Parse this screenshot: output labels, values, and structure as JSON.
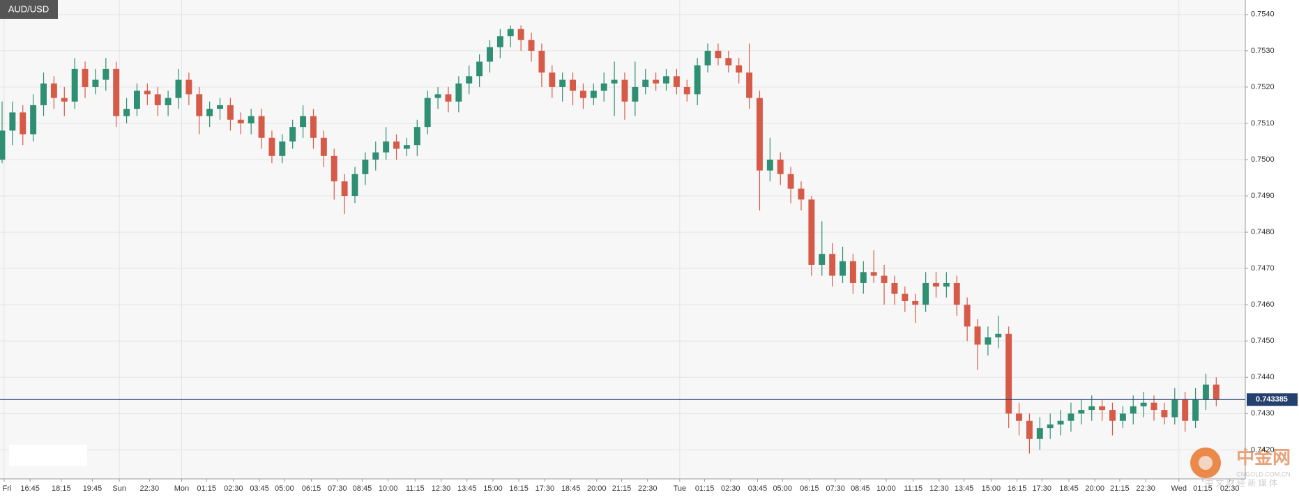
{
  "chart_data": {
    "type": "candlestick",
    "title": "AUD/USD",
    "open": [
      0.75,
      0.7508,
      0.7513,
      0.7507,
      0.7515,
      0.7521,
      0.7517,
      0.7516,
      0.7525,
      0.752,
      0.7522,
      0.7525,
      0.7512,
      0.7514,
      0.7519,
      0.7518,
      0.7515,
      0.7517,
      0.7522,
      0.7518,
      0.7512,
      0.7514,
      0.7515,
      0.7511,
      0.751,
      0.7512,
      0.7506,
      0.7501,
      0.7505,
      0.7509,
      0.7512,
      0.7506,
      0.7501,
      0.7494,
      0.749,
      0.7496,
      0.75,
      0.7502,
      0.7505,
      0.7503,
      0.7504,
      0.7509,
      0.7517,
      0.7518,
      0.7516,
      0.7521,
      0.7523,
      0.7527,
      0.7531,
      0.7534,
      0.7536,
      0.7533,
      0.753,
      0.7524,
      0.752,
      0.7522,
      0.7519,
      0.7517,
      0.7519,
      0.7521,
      0.7522,
      0.7516,
      0.752,
      0.7522,
      0.7521,
      0.7523,
      0.752,
      0.7518,
      0.7526,
      0.753,
      0.7528,
      0.7526,
      0.7524,
      0.7517,
      0.7497,
      0.75,
      0.7496,
      0.7492,
      0.7489,
      0.7471,
      0.7474,
      0.7468,
      0.7472,
      0.7466,
      0.7469,
      0.7468,
      0.7466,
      0.7463,
      0.7461,
      0.746,
      0.7466,
      0.7465,
      0.7466,
      0.746,
      0.7454,
      0.7449,
      0.7451,
      0.7452,
      0.743,
      0.7428,
      0.7423,
      0.7426,
      0.7427,
      0.7428,
      0.743,
      0.7431,
      0.7432,
      0.7431,
      0.7428,
      0.743,
      0.7432,
      0.7433,
      0.7431,
      0.7429,
      0.7434,
      0.7428,
      0.7434,
      0.7438
    ],
    "high": [
      0.7516,
      0.7516,
      0.7515,
      0.7518,
      0.7524,
      0.7523,
      0.752,
      0.7528,
      0.7527,
      0.7525,
      0.7528,
      0.7527,
      0.7517,
      0.7521,
      0.7521,
      0.752,
      0.7519,
      0.7525,
      0.7524,
      0.752,
      0.7516,
      0.7517,
      0.7517,
      0.7513,
      0.7514,
      0.7514,
      0.7508,
      0.7507,
      0.7511,
      0.7515,
      0.7514,
      0.7508,
      0.7503,
      0.7496,
      0.7498,
      0.7502,
      0.7505,
      0.7509,
      0.7507,
      0.7506,
      0.7511,
      0.7519,
      0.752,
      0.752,
      0.7523,
      0.7526,
      0.7529,
      0.7533,
      0.7536,
      0.7537,
      0.7537,
      0.7535,
      0.7532,
      0.7526,
      0.7524,
      0.7524,
      0.7521,
      0.7521,
      0.7524,
      0.7527,
      0.7524,
      0.7527,
      0.7525,
      0.7524,
      0.7525,
      0.7525,
      0.7522,
      0.7528,
      0.7532,
      0.7532,
      0.753,
      0.7528,
      0.7532,
      0.7519,
      0.7506,
      0.7502,
      0.7498,
      0.7494,
      0.749,
      0.7483,
      0.7477,
      0.7476,
      0.7474,
      0.7472,
      0.7475,
      0.7471,
      0.7468,
      0.7465,
      0.7463,
      0.7469,
      0.7469,
      0.7469,
      0.7468,
      0.7462,
      0.7456,
      0.7454,
      0.7457,
      0.7454,
      0.7433,
      0.743,
      0.7429,
      0.743,
      0.7431,
      0.7433,
      0.7434,
      0.7435,
      0.7434,
      0.7433,
      0.7432,
      0.7435,
      0.7436,
      0.7435,
      0.7433,
      0.7437,
      0.7436,
      0.7437,
      0.7441,
      0.744
    ],
    "low": [
      0.7499,
      0.7504,
      0.7504,
      0.7505,
      0.7512,
      0.7514,
      0.7512,
      0.7514,
      0.7517,
      0.7518,
      0.7519,
      0.7509,
      0.751,
      0.7512,
      0.7515,
      0.7512,
      0.7512,
      0.7514,
      0.7515,
      0.7507,
      0.7509,
      0.7511,
      0.7508,
      0.7507,
      0.7507,
      0.7503,
      0.7499,
      0.7499,
      0.7503,
      0.7506,
      0.7503,
      0.7498,
      0.7489,
      0.7485,
      0.7488,
      0.7493,
      0.7497,
      0.75,
      0.75,
      0.7501,
      0.7501,
      0.7507,
      0.7514,
      0.7513,
      0.7513,
      0.7518,
      0.752,
      0.7524,
      0.7528,
      0.7531,
      0.753,
      0.7527,
      0.752,
      0.7517,
      0.7516,
      0.7515,
      0.7514,
      0.7515,
      0.7516,
      0.7512,
      0.7511,
      0.7512,
      0.7518,
      0.7519,
      0.7519,
      0.7518,
      0.7516,
      0.7515,
      0.7524,
      0.7526,
      0.7524,
      0.7521,
      0.7514,
      0.7486,
      0.7494,
      0.7493,
      0.7488,
      0.7486,
      0.7468,
      0.7468,
      0.7465,
      0.7466,
      0.7463,
      0.7463,
      0.7466,
      0.746,
      0.746,
      0.7458,
      0.7455,
      0.7458,
      0.7462,
      0.7462,
      0.7457,
      0.745,
      0.7442,
      0.7446,
      0.7448,
      0.7426,
      0.7424,
      0.7419,
      0.742,
      0.7423,
      0.7424,
      0.7425,
      0.7427,
      0.7428,
      0.7428,
      0.7424,
      0.7426,
      0.7427,
      0.7429,
      0.7428,
      0.7427,
      0.7427,
      0.7425,
      0.7426,
      0.7431,
      0.7432
    ],
    "close": [
      0.7508,
      0.7513,
      0.7507,
      0.7515,
      0.7521,
      0.7517,
      0.7516,
      0.7525,
      0.752,
      0.7522,
      0.7525,
      0.7512,
      0.7514,
      0.7519,
      0.7518,
      0.7515,
      0.7517,
      0.7522,
      0.7518,
      0.7512,
      0.7514,
      0.7515,
      0.7511,
      0.751,
      0.7512,
      0.7506,
      0.7501,
      0.7505,
      0.7509,
      0.7512,
      0.7506,
      0.7501,
      0.7494,
      0.749,
      0.7496,
      0.75,
      0.7502,
      0.7505,
      0.7503,
      0.7504,
      0.7509,
      0.7517,
      0.7518,
      0.7516,
      0.7521,
      0.7523,
      0.7527,
      0.7531,
      0.7534,
      0.7536,
      0.7533,
      0.753,
      0.7524,
      0.752,
      0.7522,
      0.7519,
      0.7517,
      0.7519,
      0.7521,
      0.7522,
      0.7516,
      0.752,
      0.7522,
      0.7521,
      0.7523,
      0.752,
      0.7518,
      0.7526,
      0.753,
      0.7528,
      0.7526,
      0.7524,
      0.7517,
      0.7497,
      0.75,
      0.7496,
      0.7492,
      0.7489,
      0.7471,
      0.7474,
      0.7468,
      0.7472,
      0.7466,
      0.7469,
      0.7468,
      0.7466,
      0.7463,
      0.7461,
      0.746,
      0.7466,
      0.7465,
      0.7466,
      0.746,
      0.7454,
      0.7449,
      0.7451,
      0.7452,
      0.743,
      0.7428,
      0.7423,
      0.7426,
      0.7427,
      0.7428,
      0.743,
      0.7431,
      0.7432,
      0.7431,
      0.7428,
      0.743,
      0.7432,
      0.7433,
      0.7431,
      0.7429,
      0.7434,
      0.7428,
      0.7434,
      0.7438,
      0.7434
    ],
    "up_color": "#2e8f72",
    "down_color": "#d65a48",
    "xlim": [
      -0.2,
      119.8
    ],
    "xticks": [
      {
        "value": 0.2,
        "label": "Fri"
      },
      {
        "value": 2.7,
        "label": "16:45"
      },
      {
        "value": 5.7,
        "label": "18:15"
      },
      {
        "value": 8.7,
        "label": "19:45"
      },
      {
        "value": 11.3,
        "label": "Sun"
      },
      {
        "value": 14.2,
        "label": "22:30"
      },
      {
        "value": 17.3,
        "label": "Mon"
      },
      {
        "value": 19.7,
        "label": "01:15"
      },
      {
        "value": 22.3,
        "label": "02:30"
      },
      {
        "value": 24.8,
        "label": "03:45"
      },
      {
        "value": 27.2,
        "label": "05:00"
      },
      {
        "value": 29.8,
        "label": "06:15"
      },
      {
        "value": 32.3,
        "label": "07:30"
      },
      {
        "value": 34.7,
        "label": "08:45"
      },
      {
        "value": 37.2,
        "label": "10:00"
      },
      {
        "value": 39.8,
        "label": "11:15"
      },
      {
        "value": 42.3,
        "label": "12:30"
      },
      {
        "value": 44.8,
        "label": "13:45"
      },
      {
        "value": 47.3,
        "label": "15:00"
      },
      {
        "value": 49.8,
        "label": "16:15"
      },
      {
        "value": 52.3,
        "label": "17:30"
      },
      {
        "value": 54.8,
        "label": "18:45"
      },
      {
        "value": 57.3,
        "label": "20:00"
      },
      {
        "value": 59.7,
        "label": "21:15"
      },
      {
        "value": 62.2,
        "label": "22:30"
      },
      {
        "value": 65.3,
        "label": "Tue"
      },
      {
        "value": 67.7,
        "label": "01:15"
      },
      {
        "value": 70.2,
        "label": "02:30"
      },
      {
        "value": 72.8,
        "label": "03:45"
      },
      {
        "value": 75.2,
        "label": "05:00"
      },
      {
        "value": 77.8,
        "label": "06:15"
      },
      {
        "value": 80.3,
        "label": "07:30"
      },
      {
        "value": 82.7,
        "label": "08:45"
      },
      {
        "value": 85.2,
        "label": "10:00"
      },
      {
        "value": 87.8,
        "label": "11:15"
      },
      {
        "value": 90.3,
        "label": "12:30"
      },
      {
        "value": 92.7,
        "label": "13:45"
      },
      {
        "value": 95.3,
        "label": "15:00"
      },
      {
        "value": 97.8,
        "label": "16:15"
      },
      {
        "value": 100.2,
        "label": "17:30"
      },
      {
        "value": 102.8,
        "label": "18:45"
      },
      {
        "value": 105.3,
        "label": "20:00"
      },
      {
        "value": 107.7,
        "label": "21:15"
      },
      {
        "value": 110.2,
        "label": "22:30"
      },
      {
        "value": 113.4,
        "label": "Wed"
      },
      {
        "value": 115.7,
        "label": "01:15"
      },
      {
        "value": 118.3,
        "label": "02:30"
      }
    ],
    "ylim": [
      0.7412,
      0.7544
    ],
    "yticks": [
      {
        "value": 0.742,
        "label": "0.7420"
      },
      {
        "value": 0.743,
        "label": "0.7430"
      },
      {
        "value": 0.744,
        "label": "0.7440"
      },
      {
        "value": 0.745,
        "label": "0.7450"
      },
      {
        "value": 0.746,
        "label": "0.7460"
      },
      {
        "value": 0.747,
        "label": "0.7470"
      },
      {
        "value": 0.748,
        "label": "0.7480"
      },
      {
        "value": 0.749,
        "label": "0.7490"
      },
      {
        "value": 0.75,
        "label": "0.7500"
      },
      {
        "value": 0.751,
        "label": "0.7510"
      },
      {
        "value": 0.752,
        "label": "0.7520"
      },
      {
        "value": 0.753,
        "label": "0.7530"
      },
      {
        "value": 0.754,
        "label": "0.7540"
      }
    ],
    "grid": true,
    "current_price": 0.743385,
    "current_price_color": "#23406e",
    "watermark": {
      "brand": "中金网",
      "site": "CNGOLD.COM.CN",
      "slogan": "中 文 财 经 新 媒 体"
    }
  }
}
